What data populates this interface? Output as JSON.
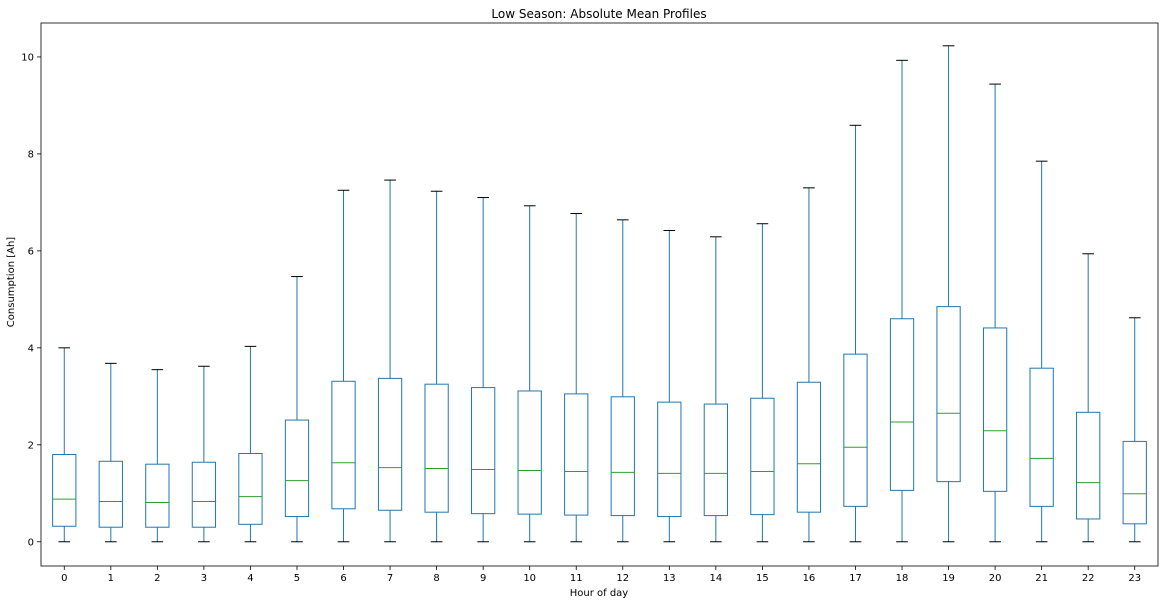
{
  "chart_data": {
    "type": "box",
    "title": "Low Season: Absolute Mean Profiles",
    "xlabel": "Hour of day",
    "ylabel": "Consumption [Ah]",
    "ylim": [
      -0.5,
      10.7
    ],
    "yticks": [
      "0",
      "2",
      "4",
      "6",
      "8",
      "10"
    ],
    "grid": false,
    "colors": {
      "box": "#1f77b4",
      "median": "#2ca02c",
      "cap": "#000000",
      "axis": "#000000"
    },
    "boxes": [
      {
        "label": "0",
        "min": 0,
        "q1": 0.32,
        "median": 0.88,
        "q3": 1.8,
        "max": 4.0
      },
      {
        "label": "1",
        "min": 0,
        "q1": 0.3,
        "median": 0.83,
        "q3": 1.66,
        "max": 3.68
      },
      {
        "label": "2",
        "min": 0,
        "q1": 0.3,
        "median": 0.81,
        "q3": 1.6,
        "max": 3.55
      },
      {
        "label": "3",
        "min": 0,
        "q1": 0.3,
        "median": 0.83,
        "q3": 1.64,
        "max": 3.62
      },
      {
        "label": "4",
        "min": 0,
        "q1": 0.36,
        "median": 0.93,
        "q3": 1.82,
        "max": 4.03
      },
      {
        "label": "5",
        "min": 0,
        "q1": 0.52,
        "median": 1.26,
        "q3": 2.51,
        "max": 5.47
      },
      {
        "label": "6",
        "min": 0,
        "q1": 0.68,
        "median": 1.63,
        "q3": 3.31,
        "max": 7.25
      },
      {
        "label": "7",
        "min": 0,
        "q1": 0.65,
        "median": 1.53,
        "q3": 3.37,
        "max": 7.46
      },
      {
        "label": "8",
        "min": 0,
        "q1": 0.61,
        "median": 1.51,
        "q3": 3.25,
        "max": 7.23
      },
      {
        "label": "9",
        "min": 0,
        "q1": 0.58,
        "median": 1.49,
        "q3": 3.18,
        "max": 7.1
      },
      {
        "label": "10",
        "min": 0,
        "q1": 0.57,
        "median": 1.47,
        "q3": 3.11,
        "max": 6.93
      },
      {
        "label": "11",
        "min": 0,
        "q1": 0.55,
        "median": 1.45,
        "q3": 3.05,
        "max": 6.77
      },
      {
        "label": "12",
        "min": 0,
        "q1": 0.54,
        "median": 1.43,
        "q3": 2.99,
        "max": 6.64
      },
      {
        "label": "13",
        "min": 0,
        "q1": 0.52,
        "median": 1.41,
        "q3": 2.88,
        "max": 6.42
      },
      {
        "label": "14",
        "min": 0,
        "q1": 0.54,
        "median": 1.41,
        "q3": 2.84,
        "max": 6.29
      },
      {
        "label": "15",
        "min": 0,
        "q1": 0.56,
        "median": 1.45,
        "q3": 2.96,
        "max": 6.56
      },
      {
        "label": "16",
        "min": 0,
        "q1": 0.61,
        "median": 1.61,
        "q3": 3.29,
        "max": 7.3
      },
      {
        "label": "17",
        "min": 0,
        "q1": 0.73,
        "median": 1.95,
        "q3": 3.87,
        "max": 8.59
      },
      {
        "label": "18",
        "min": 0,
        "q1": 1.06,
        "median": 2.47,
        "q3": 4.6,
        "max": 9.93
      },
      {
        "label": "19",
        "min": 0,
        "q1": 1.24,
        "median": 2.65,
        "q3": 4.85,
        "max": 10.23
      },
      {
        "label": "20",
        "min": 0,
        "q1": 1.04,
        "median": 2.29,
        "q3": 4.41,
        "max": 9.44
      },
      {
        "label": "21",
        "min": 0,
        "q1": 0.73,
        "median": 1.72,
        "q3": 3.58,
        "max": 7.85
      },
      {
        "label": "22",
        "min": 0,
        "q1": 0.47,
        "median": 1.22,
        "q3": 2.67,
        "max": 5.94
      },
      {
        "label": "23",
        "min": 0,
        "q1": 0.37,
        "median": 0.99,
        "q3": 2.07,
        "max": 4.62
      }
    ]
  }
}
